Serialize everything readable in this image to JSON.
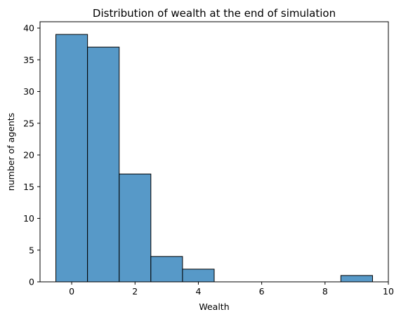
{
  "chart_data": {
    "type": "bar",
    "title": "Distribution of wealth at the end of simulation",
    "xlabel": "Wealth",
    "ylabel": "number of agents",
    "bins": [
      {
        "x_start": -0.5,
        "x_end": 0.5,
        "count": 39
      },
      {
        "x_start": 0.5,
        "x_end": 1.5,
        "count": 37
      },
      {
        "x_start": 1.5,
        "x_end": 2.5,
        "count": 17
      },
      {
        "x_start": 2.5,
        "x_end": 3.5,
        "count": 4
      },
      {
        "x_start": 3.5,
        "x_end": 4.5,
        "count": 2
      },
      {
        "x_start": 8.5,
        "x_end": 9.5,
        "count": 1
      }
    ],
    "xlim": [
      -1,
      10
    ],
    "ylim": [
      0,
      41
    ],
    "xticks": [
      0,
      2,
      4,
      6,
      8,
      10
    ],
    "yticks": [
      0,
      5,
      10,
      15,
      20,
      25,
      30,
      35,
      40
    ],
    "bar_color": "#5799c8",
    "edge_color": "#000000",
    "grid": false
  }
}
